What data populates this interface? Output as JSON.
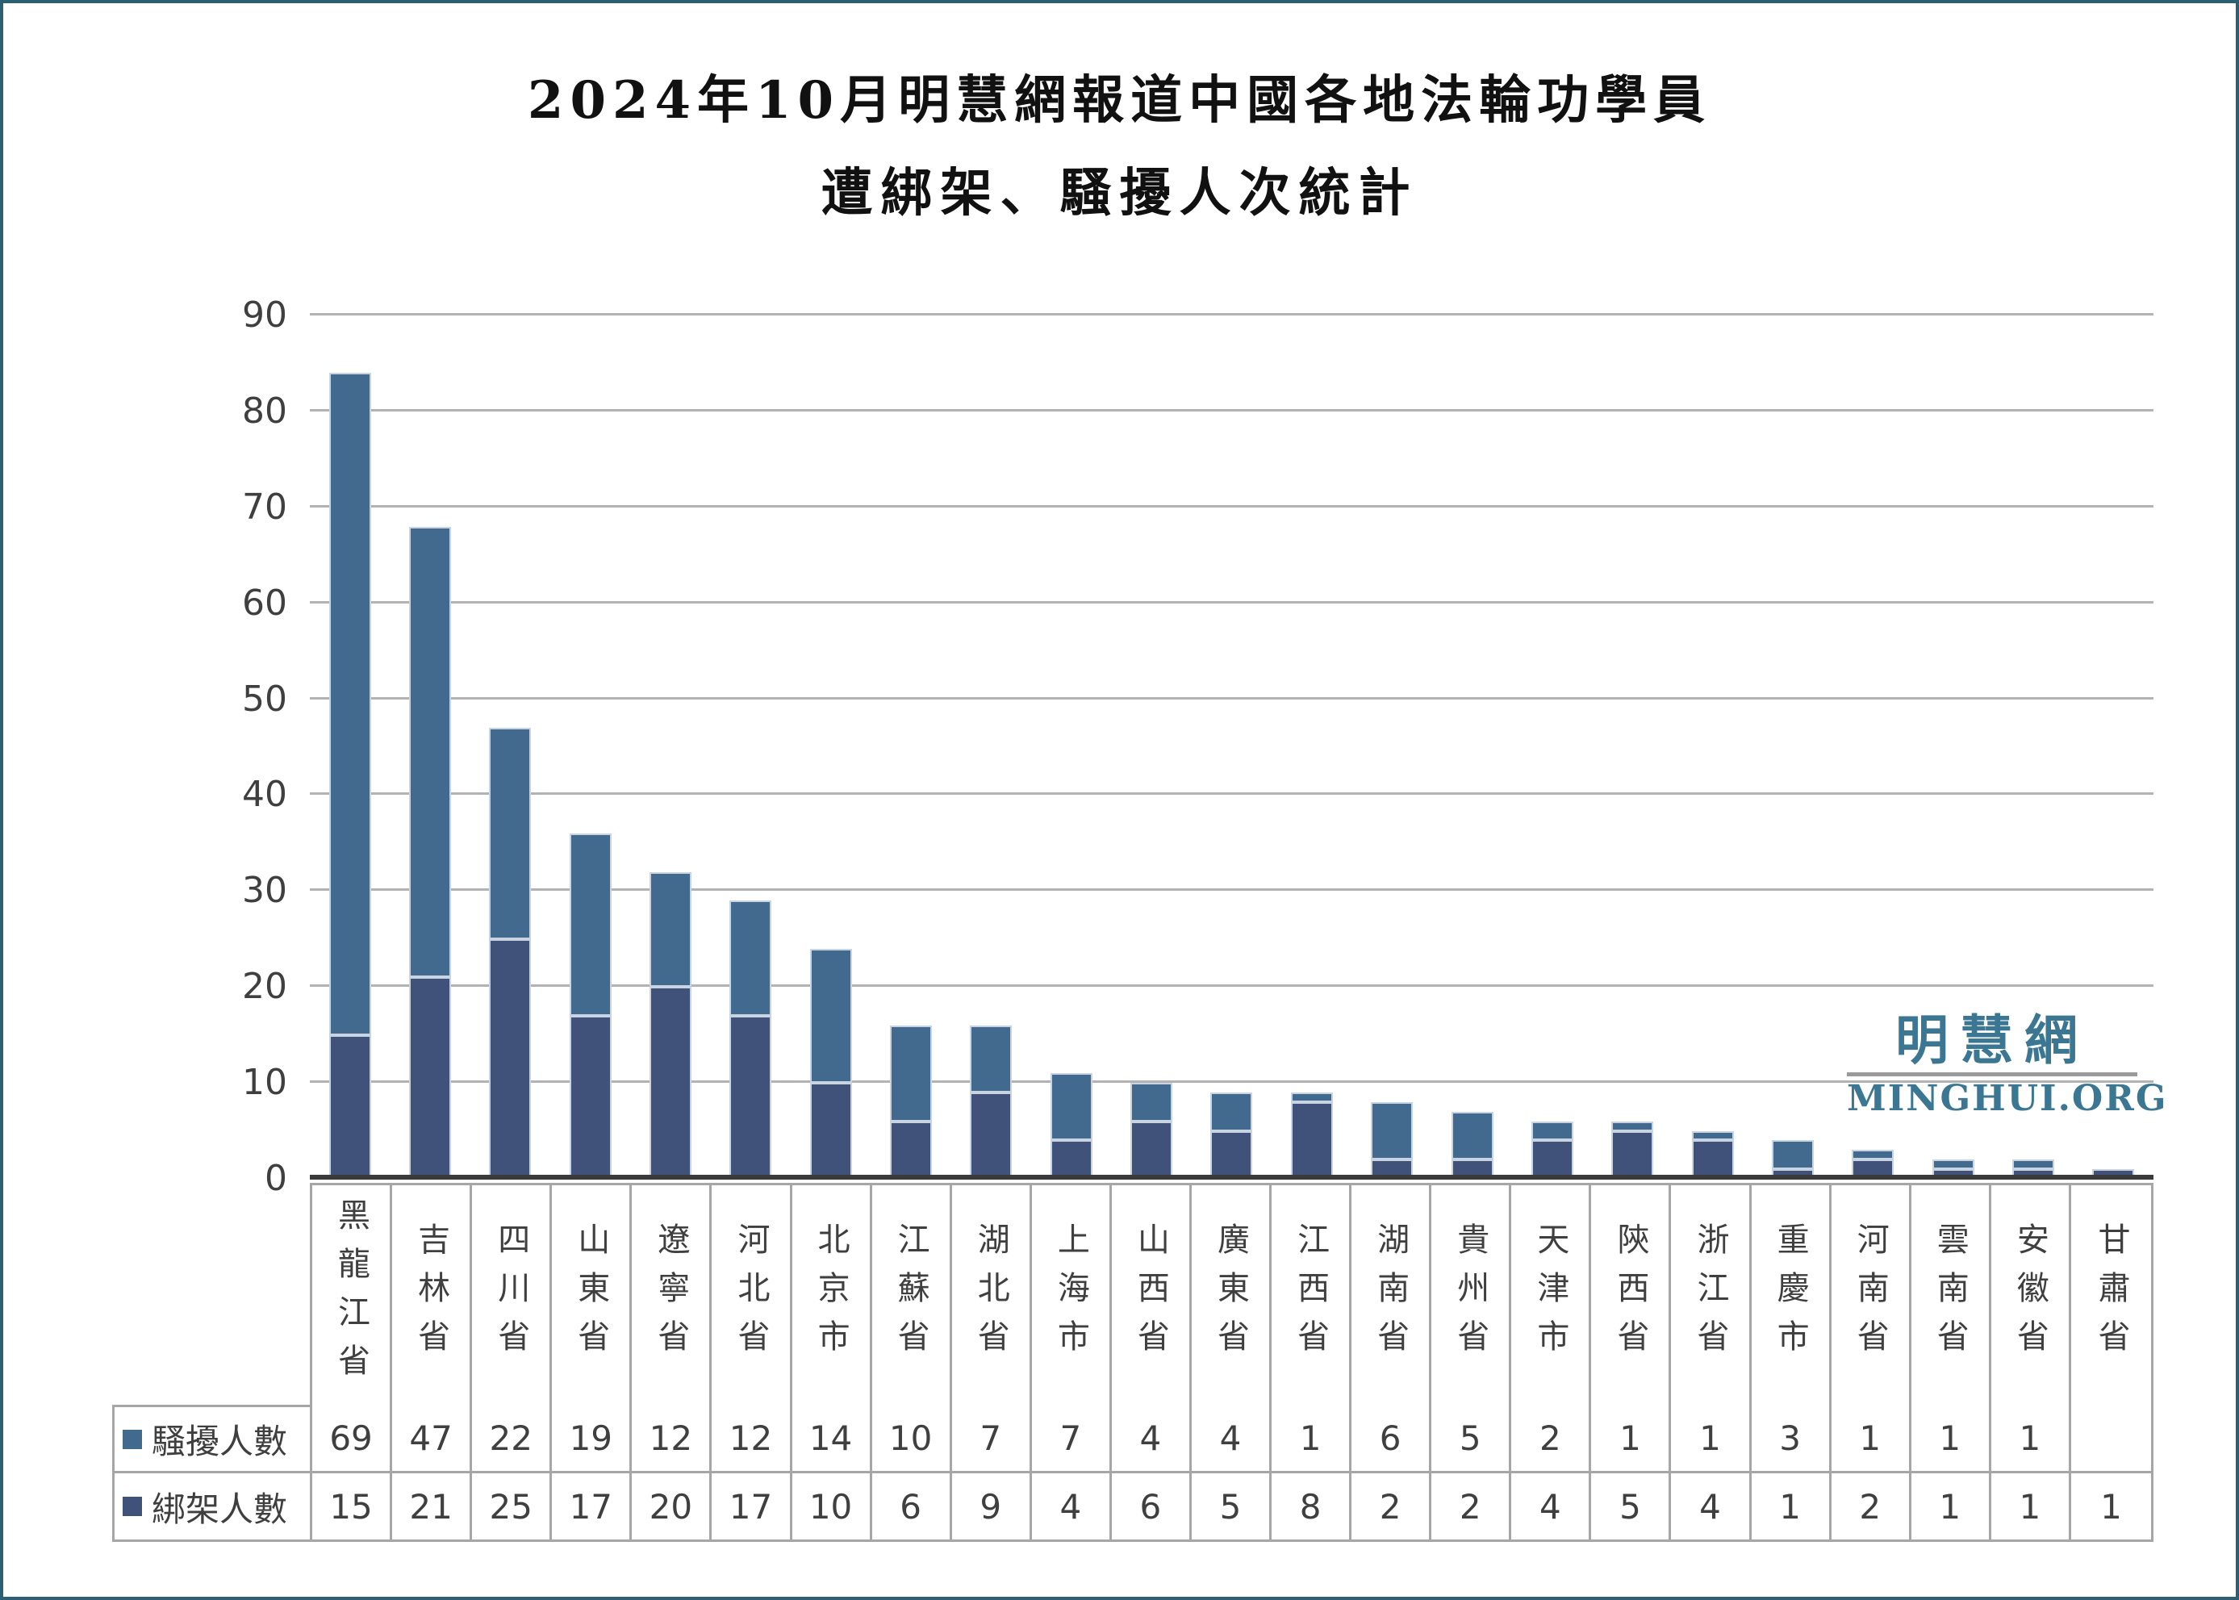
{
  "frame": {
    "border_color": "#2d5f74",
    "background": "#ffffff"
  },
  "title": {
    "line1": "2024年10月明慧網報道中國各地法輪功學員",
    "line2": "遭綁架、騷擾人次統計"
  },
  "logo": {
    "cjk": "明慧網",
    "latin": "MINGHUI.ORG",
    "color": "#3b7693"
  },
  "chart_data": {
    "type": "bar",
    "stacked": true,
    "title": "2024年10月明慧網報道中國各地法輪功學員遭綁架、騷擾人次統計",
    "categories": [
      "黑龍江省",
      "吉林省",
      "四川省",
      "山東省",
      "遼寧省",
      "河北省",
      "北京市",
      "江蘇省",
      "湖北省",
      "上海市",
      "山西省",
      "廣東省",
      "江西省",
      "湖南省",
      "貴州省",
      "天津市",
      "陝西省",
      "浙江省",
      "重慶市",
      "河南省",
      "雲南省",
      "安徽省",
      "甘肅省"
    ],
    "series": [
      {
        "name": "騷擾人數",
        "color": "#42698E",
        "stack_position": "top",
        "values": [
          69,
          47,
          22,
          19,
          12,
          12,
          14,
          10,
          7,
          7,
          4,
          4,
          1,
          6,
          5,
          2,
          1,
          1,
          3,
          1,
          1,
          1,
          ""
        ]
      },
      {
        "name": "綁架人數",
        "color": "#40517A",
        "stack_position": "bottom",
        "values": [
          15,
          21,
          25,
          17,
          20,
          17,
          10,
          6,
          9,
          4,
          6,
          5,
          8,
          2,
          2,
          4,
          5,
          4,
          1,
          2,
          1,
          1,
          1
        ]
      }
    ],
    "totals": [
      84,
      68,
      47,
      36,
      32,
      29,
      24,
      16,
      16,
      11,
      10,
      9,
      9,
      8,
      7,
      6,
      6,
      5,
      4,
      3,
      2,
      2,
      1
    ],
    "y_ticks": [
      0,
      10,
      20,
      30,
      40,
      50,
      60,
      70,
      80,
      90
    ],
    "ylim": [
      0,
      90
    ],
    "xlabel": "",
    "ylabel": "",
    "grid": true,
    "gridline_color": "#b3b3b3",
    "axis_color": "#3a3a3a",
    "table_border_color": "#a6a6a6",
    "legend_position": "table-left"
  }
}
